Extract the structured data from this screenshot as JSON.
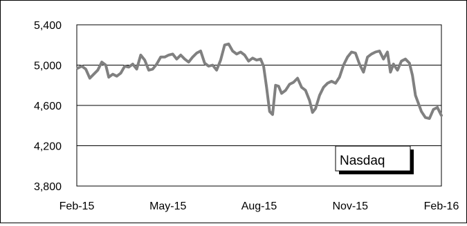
{
  "chart_data": {
    "type": "line",
    "title": "",
    "xlabel": "",
    "ylabel": "",
    "legend_placement": "bottom-right",
    "grid": true,
    "xlim": [
      "2015-02-01",
      "2016-02-01"
    ],
    "ylim": [
      3800,
      5400
    ],
    "x_ticks": [
      "Feb-15",
      "May-15",
      "Aug-15",
      "Nov-15",
      "Feb-16"
    ],
    "y_ticks": [
      "3,800",
      "4,200",
      "4,600",
      "5,000",
      "5,400"
    ],
    "series": [
      {
        "name": "Nasdaq",
        "color": "#808080",
        "points": [
          [
            "2015-02-02",
            4970
          ],
          [
            "2015-02-06",
            4990
          ],
          [
            "2015-02-10",
            4960
          ],
          [
            "2015-02-14",
            4870
          ],
          [
            "2015-02-18",
            4910
          ],
          [
            "2015-02-22",
            4950
          ],
          [
            "2015-02-26",
            5030
          ],
          [
            "2015-03-02",
            5000
          ],
          [
            "2015-03-05",
            4880
          ],
          [
            "2015-03-09",
            4910
          ],
          [
            "2015-03-13",
            4890
          ],
          [
            "2015-03-17",
            4920
          ],
          [
            "2015-03-21",
            4990
          ],
          [
            "2015-03-25",
            4980
          ],
          [
            "2015-03-29",
            5010
          ],
          [
            "2015-04-02",
            4960
          ],
          [
            "2015-04-06",
            5100
          ],
          [
            "2015-04-10",
            5050
          ],
          [
            "2015-04-14",
            4950
          ],
          [
            "2015-04-18",
            4960
          ],
          [
            "2015-04-22",
            5010
          ],
          [
            "2015-04-26",
            5080
          ],
          [
            "2015-04-30",
            5080
          ],
          [
            "2015-05-04",
            5100
          ],
          [
            "2015-05-08",
            5110
          ],
          [
            "2015-05-12",
            5060
          ],
          [
            "2015-05-16",
            5100
          ],
          [
            "2015-05-20",
            5060
          ],
          [
            "2015-05-24",
            5030
          ],
          [
            "2015-05-28",
            5080
          ],
          [
            "2015-06-01",
            5120
          ],
          [
            "2015-06-05",
            5140
          ],
          [
            "2015-06-09",
            5020
          ],
          [
            "2015-06-13",
            4990
          ],
          [
            "2015-06-17",
            5000
          ],
          [
            "2015-06-21",
            4950
          ],
          [
            "2015-06-25",
            5050
          ],
          [
            "2015-06-29",
            5200
          ],
          [
            "2015-07-03",
            5210
          ],
          [
            "2015-07-07",
            5140
          ],
          [
            "2015-07-11",
            5110
          ],
          [
            "2015-07-15",
            5130
          ],
          [
            "2015-07-19",
            5100
          ],
          [
            "2015-07-23",
            5040
          ],
          [
            "2015-07-27",
            5070
          ],
          [
            "2015-07-31",
            5050
          ],
          [
            "2015-08-04",
            5060
          ],
          [
            "2015-08-07",
            4990
          ],
          [
            "2015-08-10",
            4780
          ],
          [
            "2015-08-13",
            4540
          ],
          [
            "2015-08-16",
            4510
          ],
          [
            "2015-08-19",
            4800
          ],
          [
            "2015-08-22",
            4790
          ],
          [
            "2015-08-25",
            4720
          ],
          [
            "2015-08-29",
            4750
          ],
          [
            "2015-09-02",
            4810
          ],
          [
            "2015-09-06",
            4830
          ],
          [
            "2015-09-10",
            4870
          ],
          [
            "2015-09-14",
            4780
          ],
          [
            "2015-09-18",
            4750
          ],
          [
            "2015-09-22",
            4650
          ],
          [
            "2015-09-25",
            4530
          ],
          [
            "2015-09-28",
            4570
          ],
          [
            "2015-10-02",
            4700
          ],
          [
            "2015-10-06",
            4780
          ],
          [
            "2015-10-10",
            4820
          ],
          [
            "2015-10-14",
            4840
          ],
          [
            "2015-10-18",
            4820
          ],
          [
            "2015-10-22",
            4880
          ],
          [
            "2015-10-26",
            5000
          ],
          [
            "2015-10-30",
            5080
          ],
          [
            "2015-11-03",
            5130
          ],
          [
            "2015-11-07",
            5120
          ],
          [
            "2015-11-11",
            5010
          ],
          [
            "2015-11-15",
            4930
          ],
          [
            "2015-11-19",
            5080
          ],
          [
            "2015-11-23",
            5110
          ],
          [
            "2015-11-27",
            5130
          ],
          [
            "2015-12-01",
            5140
          ],
          [
            "2015-12-05",
            5060
          ],
          [
            "2015-12-09",
            5130
          ],
          [
            "2015-12-12",
            4930
          ],
          [
            "2015-12-15",
            5010
          ],
          [
            "2015-12-19",
            4950
          ],
          [
            "2015-12-23",
            5040
          ],
          [
            "2015-12-27",
            5060
          ],
          [
            "2015-12-31",
            5020
          ],
          [
            "2016-01-03",
            4900
          ],
          [
            "2016-01-06",
            4700
          ],
          [
            "2016-01-09",
            4620
          ],
          [
            "2016-01-12",
            4540
          ],
          [
            "2016-01-16",
            4480
          ],
          [
            "2016-01-20",
            4470
          ],
          [
            "2016-01-24",
            4560
          ],
          [
            "2016-01-28",
            4580
          ],
          [
            "2016-02-01",
            4500
          ]
        ]
      }
    ]
  }
}
